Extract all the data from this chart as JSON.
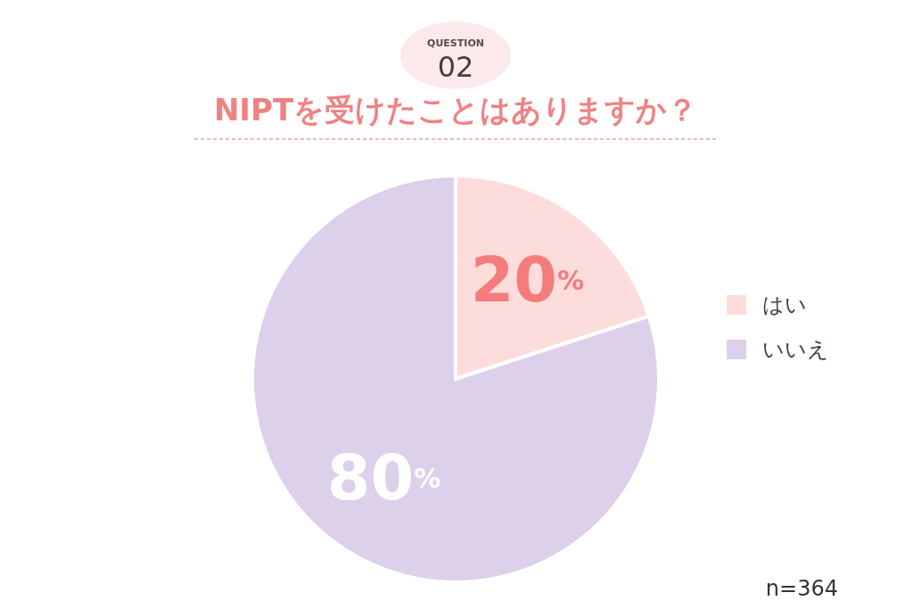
{
  "chart_data": {
    "type": "pie",
    "title": "NIPTを受けたことはありますか？",
    "categories": [
      "はい",
      "いいえ"
    ],
    "values": [
      20,
      80
    ],
    "colors": [
      "#fddcdc",
      "#ddd0ea"
    ],
    "value_labels": [
      "20%",
      "80%"
    ],
    "legend": "right",
    "annotations": [
      "QUESTION",
      "02",
      "n=364"
    ]
  }
}
